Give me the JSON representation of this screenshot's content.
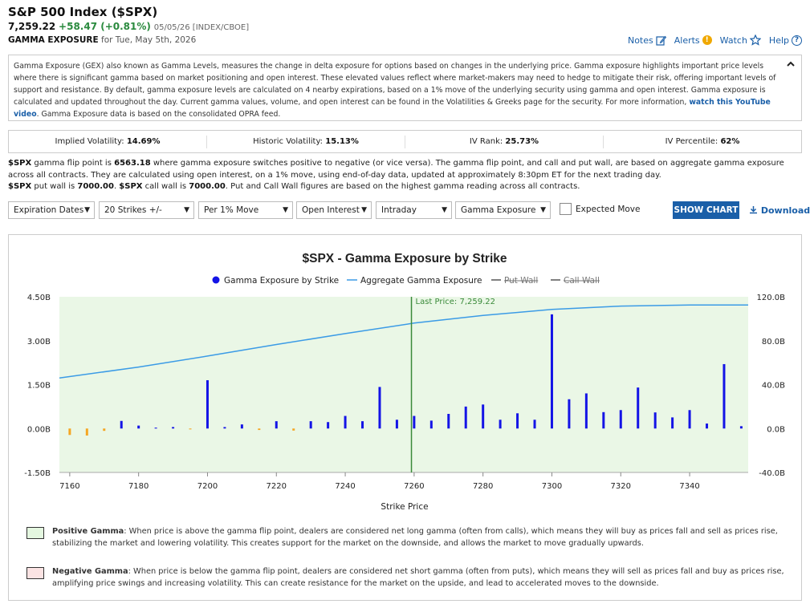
{
  "header": {
    "title": "S&P 500 Index ($SPX)",
    "last": "7,259.22",
    "change": "+58.47 (+0.81%)",
    "meta": "05/05/26 [INDEX/CBOE]",
    "subtitle_bold": "GAMMA EXPOSURE",
    "subtitle_rest": "for Tue, May 5th, 2026"
  },
  "toplinks": {
    "notes": "Notes",
    "alerts": "Alerts",
    "watch": "Watch",
    "help": "Help"
  },
  "description": {
    "text1": "Gamma Exposure (GEX) also known as Gamma Levels, measures the change in delta exposure for options based on changes in the underlying price. Gamma exposure highlights important price levels where there is significant gamma based on market positioning and open interest. These elevated values reflect where market-makers may need to hedge to mitigate their risk, offering important levels of support and resistance. By default, gamma exposure levels are calculated on 4 nearby expirations, based on a 1% move of the underlying security using gamma and open interest. Gamma exposure is calculated and updated throughout the day. Current gamma values, volume, and open interest can be found in the Volatilities & Greeks page for the security. For more information, ",
    "link": "watch this YouTube video",
    "text2": ". Gamma Exposure data is based on the consolidated OPRA feed."
  },
  "stats": [
    {
      "label": "Implied Volatility:",
      "value": "14.69%"
    },
    {
      "label": "Historic Volatility:",
      "value": "15.13%"
    },
    {
      "label": "IV Rank:",
      "value": "25.73%"
    },
    {
      "label": "IV Percentile:",
      "value": "62%"
    }
  ],
  "info": {
    "sym": "$SPX",
    "t1": " gamma flip point is ",
    "flip": "6563.18",
    "t2": " where gamma exposure switches positive to negative (or vice versa). The gamma flip point, and call and put wall, are based on aggregate gamma exposure across all contracts. They are calculated using open interest, on a 1% move, using end-of-day data, updated at approximately 8:30pm ET for the next trading day.",
    "sym2": "$SPX",
    "t3": " put wall is ",
    "putwall": "7000.00",
    "t4": ". ",
    "sym3": "$SPX",
    "t5": " call wall is ",
    "callwall": "7000.00",
    "t6": ". Put and Call Wall figures are based on the highest gamma reading across all contracts."
  },
  "controls": {
    "expiration": "Expiration Dates",
    "strikes": "20 Strikes +/-",
    "move": "Per 1% Move",
    "metric": "Open Interest",
    "timeframe": "Intraday",
    "view": "Gamma Exposure",
    "expected_move": "Expected Move",
    "show_chart": "SHOW CHART",
    "download": "Download"
  },
  "chart_data": {
    "type": "bar",
    "title": "$SPX - Gamma Exposure by Strike",
    "xlabel": "Strike Price",
    "legend": [
      "Gamma Exposure by Strike",
      "Aggregate Gamma Exposure",
      "Put Wall",
      "Call Wall"
    ],
    "legend_position": "top-center",
    "last_price_label": "Last Price: 7,259.22",
    "last_price": 7259.22,
    "xlim": [
      7157,
      7357
    ],
    "xticks": [
      7160,
      7180,
      7200,
      7220,
      7240,
      7260,
      7280,
      7300,
      7320,
      7340
    ],
    "ylim": [
      -1.5,
      4.5
    ],
    "yticks": [
      "4.50B",
      "3.00B",
      "1.50B",
      "0.00B",
      "-1.50B"
    ],
    "y2lim": [
      -40,
      120
    ],
    "y2ticks": [
      "120.0B",
      "80.0B",
      "40.0B",
      "0.0B",
      "-40.0B"
    ],
    "strikes": [
      7160,
      7165,
      7170,
      7175,
      7180,
      7185,
      7190,
      7195,
      7200,
      7205,
      7210,
      7215,
      7220,
      7225,
      7230,
      7235,
      7240,
      7245,
      7250,
      7255,
      7260,
      7265,
      7270,
      7275,
      7280,
      7285,
      7290,
      7295,
      7300,
      7305,
      7310,
      7315,
      7320,
      7325,
      7330,
      7335,
      7340,
      7345,
      7350,
      7355
    ],
    "values": [
      -0.22,
      -0.24,
      -0.08,
      0.26,
      0.1,
      0.03,
      0.05,
      -0.03,
      1.65,
      0.05,
      0.14,
      -0.05,
      0.25,
      -0.07,
      0.25,
      0.22,
      0.43,
      0.25,
      1.42,
      0.3,
      0.43,
      0.27,
      0.5,
      0.75,
      0.82,
      0.3,
      0.52,
      0.3,
      3.9,
      1.0,
      1.2,
      0.56,
      0.63,
      1.4,
      0.55,
      0.38,
      0.63,
      0.17,
      2.2,
      0.08
    ],
    "aggregate": {
      "x": [
        7157,
        7180,
        7200,
        7220,
        7240,
        7260,
        7280,
        7300,
        7320,
        7340,
        7357
      ],
      "y": [
        46,
        56,
        66,
        76.5,
        86.5,
        96,
        103,
        108.5,
        111.5,
        112.5,
        112.5
      ]
    },
    "colors": {
      "positive": "#1414e6",
      "negative": "#f5a623",
      "aggregate": "#3b9be6",
      "last_price": "#3a8a3a",
      "pos_bg": "#eaf7e6"
    }
  },
  "notes": {
    "positive_title": "Positive Gamma",
    "positive_text": ": When price is above the gamma flip point, dealers are considered net long gamma (often from calls), which means they will buy as prices fall and sell as prices rise, stabilizing the market and lowering volatility. This creates support for the market on the downside, and allows the market to move gradually upwards.",
    "negative_title": "Negative Gamma",
    "negative_text": ": When price is below the gamma flip point, dealers are considered net short gamma (often from puts), which means they will sell as prices fall and buy as prices rise, amplifying price swings and increasing volatility. This can create resistance for the market on the upside, and lead to accelerated moves to the downside.",
    "positive_color": "#e4f7e0",
    "negative_color": "#fbe3e3"
  }
}
